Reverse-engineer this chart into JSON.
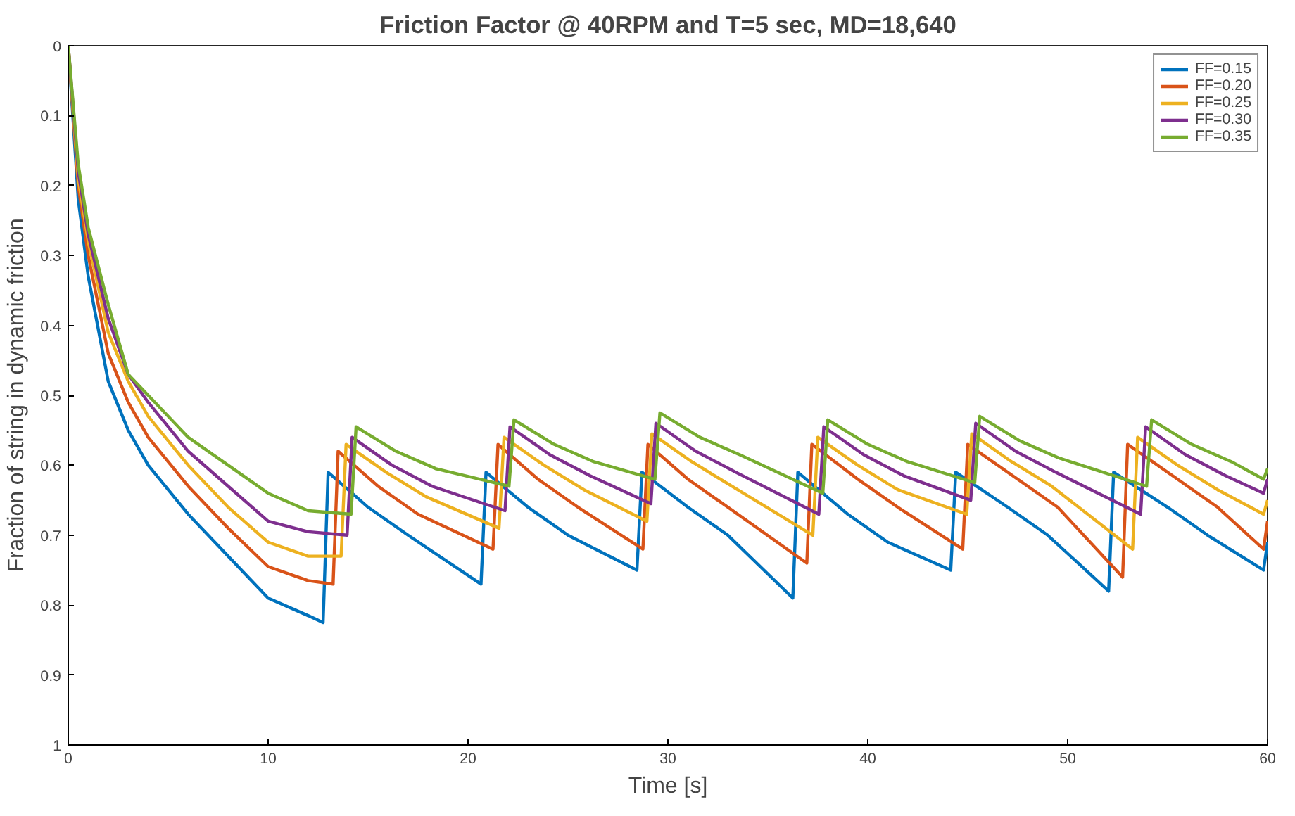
{
  "chart_data": {
    "type": "line",
    "title": "Friction Factor @ 40RPM and T=5 sec, MD=18,640",
    "xlabel": "Time [s]",
    "ylabel": "Fraction of string in dynamic friction",
    "xlim": [
      0,
      60
    ],
    "xticks": [
      0,
      10,
      20,
      30,
      40,
      50,
      60
    ],
    "ylim": [
      1,
      0
    ],
    "yticks": [
      0,
      0.1,
      0.2,
      0.3,
      0.4,
      0.5,
      0.6,
      0.7,
      0.8,
      0.9,
      1
    ],
    "grid": false,
    "legend": "top right",
    "line_style": "solid",
    "marker": "none",
    "series": [
      {
        "name": "FF=0.15",
        "color": "#0072bd",
        "x": [
          0,
          0.5,
          1,
          2,
          3,
          4,
          6,
          8,
          10,
          12,
          12.75,
          13.0,
          15,
          17,
          20.65,
          20.9,
          23,
          25,
          28.45,
          28.7,
          31,
          33,
          36.25,
          36.5,
          39,
          41,
          44.15,
          44.4,
          47,
          49,
          52.05,
          52.3,
          55,
          57,
          59.8,
          60
        ],
        "values": [
          0,
          0.22,
          0.33,
          0.48,
          0.55,
          0.6,
          0.67,
          0.73,
          0.79,
          0.815,
          0.825,
          0.61,
          0.66,
          0.7,
          0.77,
          0.61,
          0.66,
          0.7,
          0.75,
          0.61,
          0.66,
          0.7,
          0.79,
          0.61,
          0.67,
          0.71,
          0.75,
          0.61,
          0.66,
          0.7,
          0.78,
          0.61,
          0.66,
          0.7,
          0.75,
          0.71
        ]
      },
      {
        "name": "FF=0.20",
        "color": "#d95319",
        "x": [
          0,
          0.5,
          1,
          2,
          3,
          4,
          6,
          8,
          10,
          12,
          13.25,
          13.5,
          15.5,
          17.5,
          21.25,
          21.5,
          23.5,
          25.5,
          28.75,
          29.0,
          31,
          33,
          36.95,
          37.2,
          39.5,
          41.5,
          44.75,
          45.0,
          47.5,
          49.5,
          52.75,
          53.0,
          55.5,
          57.5,
          59.8,
          60
        ],
        "values": [
          0,
          0.2,
          0.3,
          0.44,
          0.51,
          0.56,
          0.63,
          0.69,
          0.745,
          0.765,
          0.77,
          0.58,
          0.63,
          0.67,
          0.72,
          0.57,
          0.62,
          0.66,
          0.72,
          0.57,
          0.62,
          0.66,
          0.74,
          0.57,
          0.62,
          0.66,
          0.72,
          0.57,
          0.62,
          0.66,
          0.76,
          0.57,
          0.62,
          0.66,
          0.72,
          0.68
        ]
      },
      {
        "name": "FF=0.25",
        "color": "#edb120",
        "x": [
          0,
          0.5,
          1,
          2,
          3,
          4,
          6,
          8,
          10,
          12,
          13.65,
          13.9,
          15.9,
          17.9,
          21.55,
          21.8,
          23.8,
          25.8,
          28.95,
          29.2,
          31.2,
          33.2,
          37.25,
          37.5,
          39.5,
          41.5,
          44.95,
          45.2,
          47.2,
          49.2,
          53.25,
          53.5,
          55.5,
          57.5,
          59.8,
          60
        ],
        "values": [
          0,
          0.19,
          0.28,
          0.41,
          0.48,
          0.53,
          0.6,
          0.66,
          0.71,
          0.73,
          0.73,
          0.57,
          0.61,
          0.645,
          0.69,
          0.56,
          0.6,
          0.635,
          0.68,
          0.555,
          0.595,
          0.63,
          0.7,
          0.56,
          0.6,
          0.635,
          0.67,
          0.555,
          0.595,
          0.63,
          0.72,
          0.56,
          0.6,
          0.635,
          0.67,
          0.65
        ]
      },
      {
        "name": "FF=0.30",
        "color": "#7e2f8e",
        "x": [
          0,
          0.5,
          1,
          2,
          3,
          4,
          6,
          8,
          10,
          12,
          13.95,
          14.2,
          16.2,
          18.2,
          21.85,
          22.1,
          24.1,
          26.1,
          29.15,
          29.4,
          31.4,
          33.4,
          37.55,
          37.8,
          39.8,
          41.8,
          45.15,
          45.4,
          47.4,
          49.4,
          53.65,
          53.9,
          55.9,
          57.9,
          59.8,
          60
        ],
        "values": [
          0,
          0.18,
          0.27,
          0.39,
          0.47,
          0.51,
          0.58,
          0.63,
          0.68,
          0.695,
          0.7,
          0.56,
          0.6,
          0.63,
          0.665,
          0.545,
          0.585,
          0.615,
          0.655,
          0.54,
          0.58,
          0.61,
          0.67,
          0.545,
          0.585,
          0.615,
          0.65,
          0.54,
          0.58,
          0.61,
          0.67,
          0.545,
          0.585,
          0.615,
          0.64,
          0.62
        ]
      },
      {
        "name": "FF=0.35",
        "color": "#77ac30",
        "x": [
          0,
          0.5,
          1,
          2,
          3,
          4,
          6,
          8,
          10,
          12,
          14.15,
          14.4,
          16.4,
          18.4,
          22.05,
          22.3,
          24.3,
          26.3,
          29.35,
          29.6,
          31.6,
          33.6,
          37.75,
          38.0,
          40,
          42,
          45.35,
          45.6,
          47.6,
          49.6,
          53.95,
          54.2,
          56.2,
          58.2,
          59.8,
          60
        ],
        "values": [
          0,
          0.17,
          0.26,
          0.37,
          0.47,
          0.5,
          0.56,
          0.6,
          0.64,
          0.665,
          0.67,
          0.545,
          0.58,
          0.605,
          0.63,
          0.535,
          0.57,
          0.595,
          0.62,
          0.525,
          0.56,
          0.585,
          0.64,
          0.535,
          0.57,
          0.595,
          0.625,
          0.53,
          0.565,
          0.59,
          0.63,
          0.535,
          0.57,
          0.595,
          0.62,
          0.605
        ]
      }
    ]
  }
}
